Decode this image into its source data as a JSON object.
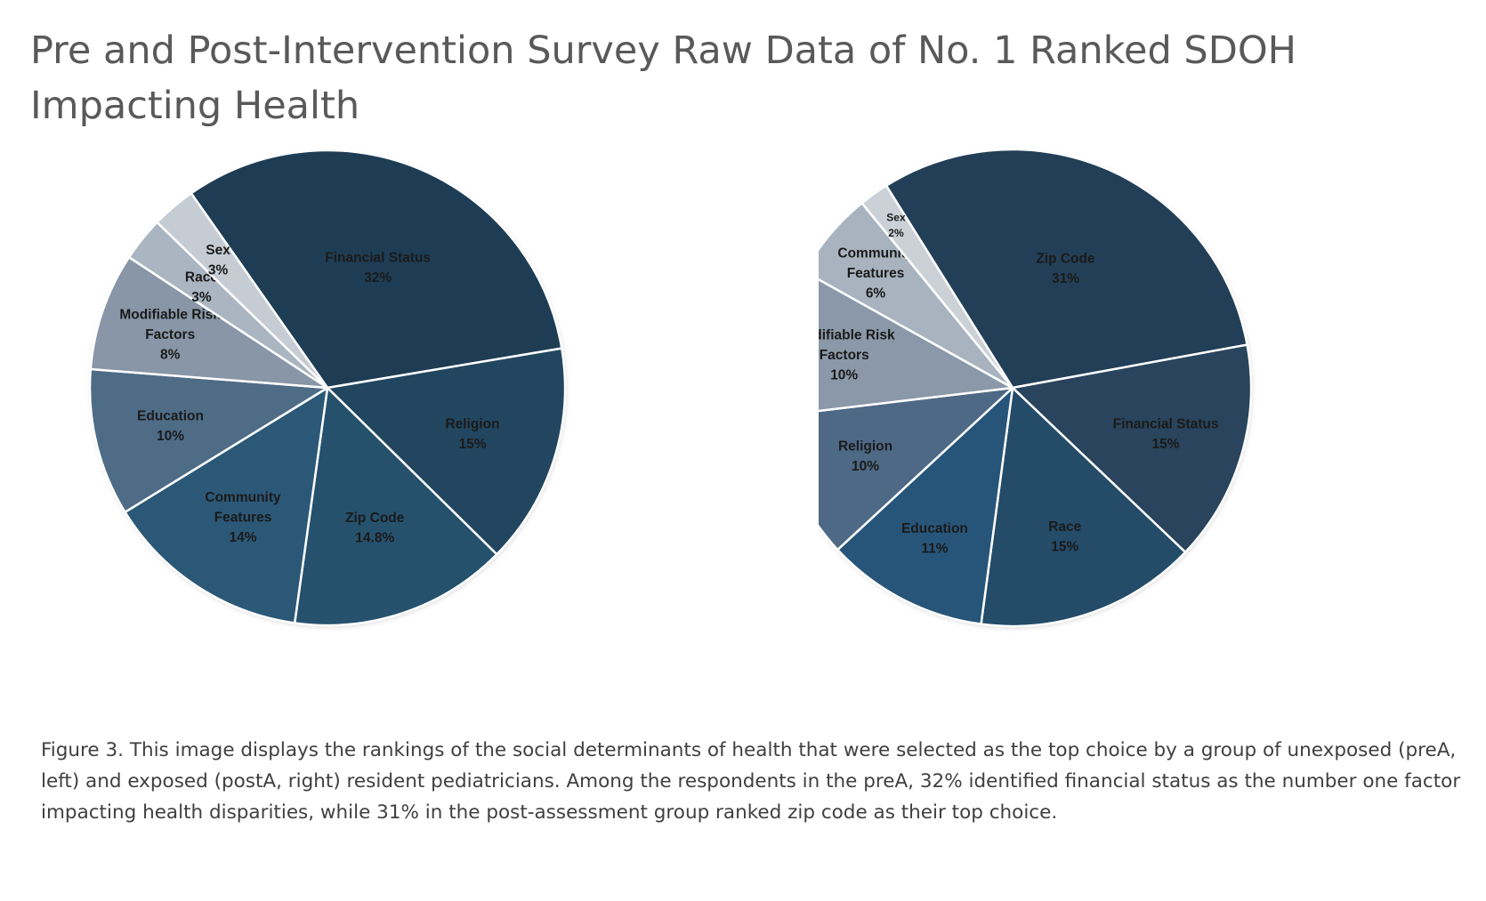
{
  "title": "Pre and Post-Intervention Survey Raw Data of No. 1 Ranked SDOH Impacting Health",
  "caption": "Figure 3. This image displays the rankings of the social determinants of health that were selected as the top choice by a group of unexposed (preA, left) and exposed (postA, right) resident pediatricians. Among the respondents in the preA, 32% identified financial status as the number one factor impacting health disparities, while 31% in the post-assessment group ranked zip code as their top choice.",
  "chart_data": [
    {
      "type": "pie",
      "title": "",
      "slices": [
        {
          "label": [
            "Financial Status"
          ],
          "value_label": "32%",
          "value": 32,
          "color": "#1e3d55"
        },
        {
          "label": [
            "Religion"
          ],
          "value_label": "15%",
          "value": 15,
          "color": "#22465f"
        },
        {
          "label": [
            "Zip Code"
          ],
          "value_label": "14.8%",
          "value": 14.8,
          "color": "#25516d"
        },
        {
          "label": [
            "Community",
            "Features"
          ],
          "value_label": "14%",
          "value": 14,
          "color": "#2b5877"
        },
        {
          "label": [
            "Education"
          ],
          "value_label": "10%",
          "value": 10,
          "color": "#4f6c87"
        },
        {
          "label": [
            "Modifiable Risk",
            "Factors"
          ],
          "value_label": "8%",
          "value": 8,
          "color": "#8896a7"
        },
        {
          "label": [
            "Race"
          ],
          "value_label": "3%",
          "value": 3,
          "color": "#aab5c1"
        },
        {
          "label": [
            "Sex"
          ],
          "value_label": "3%",
          "value": 3,
          "color": "#c6ccd4"
        }
      ]
    },
    {
      "type": "pie",
      "title": "",
      "slices": [
        {
          "label": [
            "Zip Code"
          ],
          "value_label": "31%",
          "value": 31,
          "color": "#233f57"
        },
        {
          "label": [
            "Financial Status"
          ],
          "value_label": "15%",
          "value": 15,
          "color": "#29445c"
        },
        {
          "label": [
            "Race"
          ],
          "value_label": "15%",
          "value": 15,
          "color": "#244c69"
        },
        {
          "label": [
            "Education"
          ],
          "value_label": "11%",
          "value": 11,
          "color": "#27557a"
        },
        {
          "label": [
            "Religion"
          ],
          "value_label": "10%",
          "value": 10,
          "color": "#4e6985"
        },
        {
          "label": [
            "Modifiable Risk",
            "Factors"
          ],
          "value_label": "10%",
          "value": 10,
          "color": "#8a98a9"
        },
        {
          "label": [
            "Community",
            "Features"
          ],
          "value_label": "6%",
          "value": 6,
          "color": "#a8b3bf"
        },
        {
          "label": [
            "Sex"
          ],
          "value_label": "2%",
          "value": 2,
          "color": "#ccd1d8"
        }
      ]
    }
  ]
}
